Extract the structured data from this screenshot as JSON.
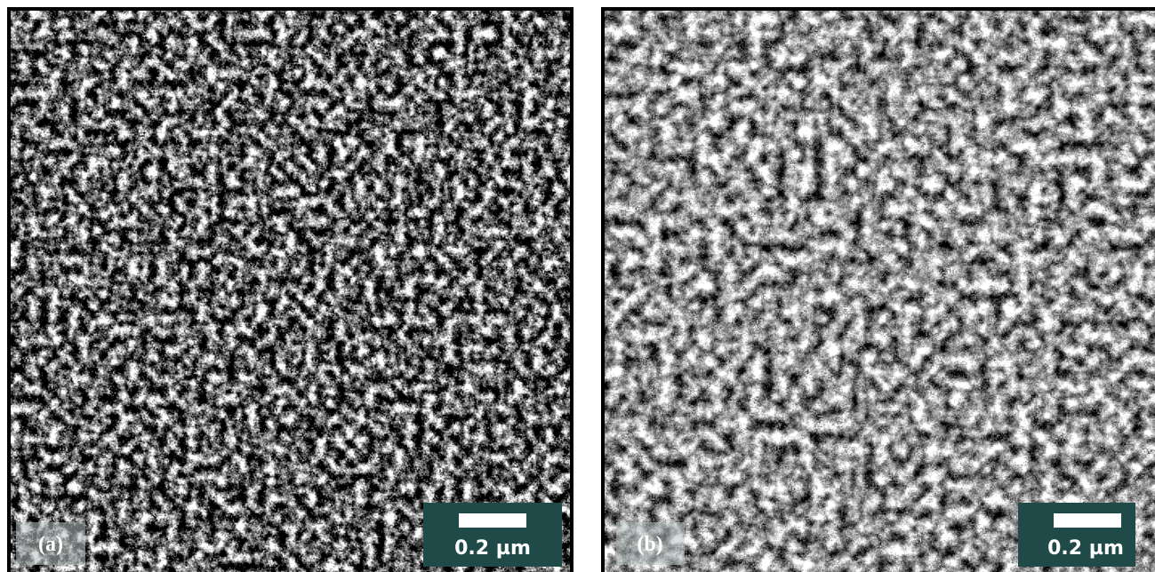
{
  "panels": [
    {
      "label": "(a)",
      "scale_bar": "0.2 µm"
    },
    {
      "label": "(b)",
      "scale_bar": "0.2 µm"
    }
  ]
}
